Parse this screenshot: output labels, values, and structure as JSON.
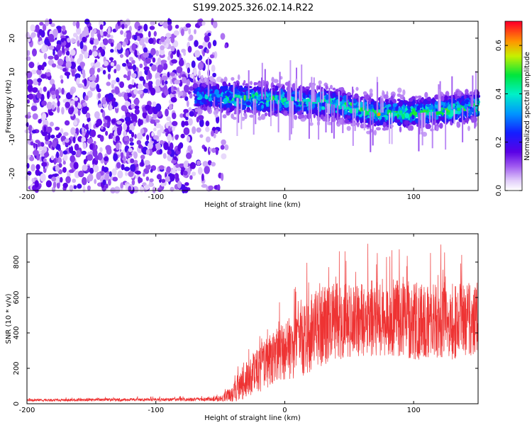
{
  "title": "S199.2025.326.02.14.R22",
  "chart_data": [
    {
      "type": "heatmap",
      "xlabel": "Height of straight line (km)",
      "ylabel": "Frequency (Hz)",
      "xlim": [
        -200,
        150
      ],
      "ylim": [
        -25,
        25
      ],
      "xticks": [
        -200,
        -100,
        0,
        100
      ],
      "yticks": [
        -20,
        -10,
        0,
        10,
        20
      ],
      "colorbar": {
        "label": "Normalized spectral amplitude",
        "range": [
          0.0,
          0.7
        ],
        "ticks": [
          0.0,
          0.2,
          0.4,
          0.6
        ]
      },
      "signal_band": {
        "description_values": "narrow band of high amplitude centred near 0 Hz for heights above about -70 km",
        "x_start": -70,
        "center_hz": [
          [
            -70,
            3
          ],
          [
            -20,
            2
          ],
          [
            30,
            1
          ],
          [
            70,
            -2
          ],
          [
            110,
            -2
          ],
          [
            150,
            0
          ]
        ],
        "half_width_hz": 5,
        "peak_amplitude": 0.65
      },
      "noise_region": {
        "x_range": [
          -200,
          -45
        ],
        "typical_amplitude": 0.1
      }
    },
    {
      "type": "line",
      "xlabel": "Height of straight line (km)",
      "ylabel": "SNR (10 * v/v)",
      "xlim": [
        -200,
        150
      ],
      "ylim": [
        0,
        960
      ],
      "xticks": [
        -200,
        -100,
        0,
        100
      ],
      "yticks": [
        0,
        200,
        400,
        600,
        800
      ],
      "series": [
        {
          "name": "SNR",
          "color": "#ee3333",
          "envelope_x": [
            -200,
            -60,
            -50,
            -40,
            -30,
            -20,
            -10,
            0,
            10,
            20,
            30,
            40,
            50,
            60,
            70,
            80,
            90,
            100,
            110,
            120,
            130,
            140,
            150
          ],
          "envelope_mean": [
            20,
            25,
            30,
            60,
            130,
            200,
            250,
            300,
            330,
            400,
            440,
            460,
            470,
            480,
            490,
            490,
            480,
            470,
            460,
            470,
            460,
            470,
            480
          ],
          "envelope_spread": [
            8,
            12,
            20,
            60,
            120,
            160,
            180,
            200,
            220,
            260,
            260,
            260,
            250,
            250,
            260,
            260,
            250,
            260,
            250,
            260,
            260,
            260,
            260
          ],
          "max_value": 950
        }
      ]
    }
  ]
}
